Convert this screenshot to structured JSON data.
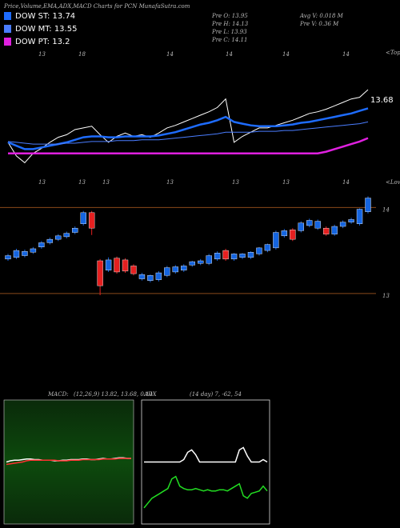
{
  "chart_data": [
    {
      "type": "line",
      "title": "Price,Volume,EMA,ADX,MACD Charts for PCN MunafaSutra.com",
      "stats": [
        "Pre O: 13.95",
        "Pre H: 14.13",
        "Pre L: 13.93",
        "Pre C: 14.11",
        "Avg V: 0.018 M",
        "Pre V: 0.36 M"
      ],
      "top_labels": [
        "13",
        "18",
        "14",
        "14",
        "14",
        "14"
      ],
      "top_marker": "<Tops",
      "bottom_labels": [
        "13",
        "13",
        "13",
        "13",
        "13",
        "13",
        "14"
      ],
      "bottom_marker": "<Lows",
      "annotation": "13.68",
      "ylim": [
        12.6,
        14.2
      ],
      "series": [
        {
          "color": "#ffffff",
          "values": [
            13.09,
            12.93,
            12.85,
            12.96,
            13.02,
            13.09,
            13.15,
            13.18,
            13.24,
            13.26,
            13.28,
            13.18,
            13.09,
            13.16,
            13.2,
            13.16,
            13.18,
            13.15,
            13.2,
            13.26,
            13.29,
            13.33,
            13.37,
            13.41,
            13.45,
            13.5,
            13.6,
            13.09,
            13.16,
            13.21,
            13.26,
            13.26,
            13.29,
            13.32,
            13.35,
            13.39,
            13.43,
            13.45,
            13.48,
            13.52,
            13.56,
            13.6,
            13.62,
            13.71
          ]
        },
        {
          "name": "DOW ST: 13.74",
          "color": "#1e6cff",
          "values": [
            13.09,
            13.05,
            13.01,
            13.01,
            13.03,
            13.05,
            13.07,
            13.09,
            13.12,
            13.15,
            13.16,
            13.16,
            13.15,
            13.15,
            13.16,
            13.16,
            13.16,
            13.16,
            13.17,
            13.19,
            13.21,
            13.24,
            13.27,
            13.3,
            13.32,
            13.35,
            13.39,
            13.33,
            13.31,
            13.29,
            13.28,
            13.28,
            13.28,
            13.29,
            13.3,
            13.32,
            13.33,
            13.35,
            13.37,
            13.39,
            13.41,
            13.43,
            13.46,
            13.49
          ]
        },
        {
          "name": "DOW MT: 13.55",
          "color": "#4a7dff",
          "values": [
            13.1,
            13.09,
            13.08,
            13.07,
            13.07,
            13.07,
            13.07,
            13.08,
            13.08,
            13.09,
            13.1,
            13.1,
            13.1,
            13.11,
            13.11,
            13.11,
            13.12,
            13.12,
            13.12,
            13.13,
            13.14,
            13.15,
            13.16,
            13.17,
            13.18,
            13.19,
            13.21,
            13.21,
            13.21,
            13.21,
            13.22,
            13.22,
            13.22,
            13.23,
            13.23,
            13.24,
            13.25,
            13.26,
            13.27,
            13.28,
            13.29,
            13.3,
            13.31,
            13.33
          ]
        },
        {
          "name": "DOW PT: 13.2",
          "color": "#e020e0",
          "values": [
            12.96,
            12.96,
            12.96,
            12.96,
            12.96,
            12.96,
            12.96,
            12.96,
            12.96,
            12.96,
            12.96,
            12.96,
            12.96,
            12.96,
            12.96,
            12.96,
            12.96,
            12.96,
            12.96,
            12.96,
            12.96,
            12.96,
            12.96,
            12.96,
            12.96,
            12.96,
            12.96,
            12.96,
            12.96,
            12.96,
            12.96,
            12.96,
            12.96,
            12.96,
            12.96,
            12.96,
            12.96,
            12.96,
            12.98,
            13.01,
            13.04,
            13.07,
            13.1,
            13.14
          ]
        }
      ]
    },
    {
      "type": "candlestick",
      "ylim": [
        11.9,
        14.32
      ],
      "yticks": [
        13,
        14
      ],
      "grid": true,
      "up_color": "#1565e0",
      "down_color": "#e52020",
      "open": [
        13.4,
        13.42,
        13.44,
        13.48,
        13.54,
        13.59,
        13.63,
        13.66,
        13.71,
        13.81,
        13.94,
        13.38,
        13.27,
        13.41,
        13.39,
        13.32,
        13.17,
        13.15,
        13.16,
        13.21,
        13.25,
        13.27,
        13.33,
        13.35,
        13.35,
        13.4,
        13.5,
        13.4,
        13.42,
        13.42,
        13.46,
        13.5,
        13.53,
        13.67,
        13.74,
        13.73,
        13.79,
        13.76,
        13.76,
        13.69,
        13.78,
        13.83,
        13.81,
        13.95
      ],
      "high": [
        13.46,
        13.52,
        13.51,
        13.54,
        13.61,
        13.65,
        13.69,
        13.72,
        13.78,
        13.96,
        13.96,
        13.4,
        13.42,
        13.43,
        13.41,
        13.34,
        13.24,
        13.22,
        13.26,
        13.32,
        13.33,
        13.34,
        13.38,
        13.4,
        13.46,
        13.49,
        13.52,
        13.47,
        13.47,
        13.49,
        13.54,
        13.58,
        13.73,
        13.75,
        13.76,
        13.84,
        13.87,
        13.86,
        13.78,
        13.8,
        13.85,
        13.88,
        13.99,
        14.13
      ],
      "low": [
        13.38,
        13.4,
        13.42,
        13.46,
        13.52,
        13.57,
        13.61,
        13.64,
        13.69,
        13.79,
        13.68,
        12.98,
        13.25,
        13.23,
        13.24,
        13.21,
        13.15,
        13.13,
        13.14,
        13.19,
        13.23,
        13.25,
        13.31,
        13.33,
        13.33,
        13.38,
        13.38,
        13.38,
        13.4,
        13.4,
        13.44,
        13.48,
        13.51,
        13.65,
        13.61,
        13.71,
        13.77,
        13.74,
        13.67,
        13.67,
        13.76,
        13.81,
        13.79,
        13.93
      ],
      "close": [
        13.44,
        13.5,
        13.49,
        13.52,
        13.59,
        13.63,
        13.67,
        13.7,
        13.76,
        13.94,
        13.76,
        13.09,
        13.39,
        13.25,
        13.26,
        13.23,
        13.22,
        13.21,
        13.24,
        13.3,
        13.31,
        13.32,
        13.37,
        13.38,
        13.44,
        13.47,
        13.4,
        13.46,
        13.46,
        13.48,
        13.53,
        13.57,
        13.71,
        13.73,
        13.63,
        13.82,
        13.85,
        13.84,
        13.69,
        13.78,
        13.83,
        13.86,
        13.98,
        14.11
      ]
    },
    {
      "type": "line",
      "title": "MACD:",
      "subtitle": "(12,26,9) 13.82, 13.68, 0.14",
      "ylim": [
        -1,
        1
      ],
      "series": [
        {
          "color": "#ffffff",
          "values": [
            0,
            0.02,
            0.03,
            0.03,
            0.04,
            0.05,
            0.05,
            0.04,
            0.04,
            0.03,
            0.03,
            0.03,
            0.02,
            0.02,
            0.03,
            0.03,
            0.04,
            0.04,
            0.04,
            0.05,
            0.05,
            0.04,
            0.04,
            0.05,
            0.06,
            0.05,
            0.05,
            0.06,
            0.07,
            0.07,
            0.06,
            0.06
          ]
        },
        {
          "color": "#ff3030",
          "values": [
            -0.04,
            -0.03,
            -0.02,
            -0.01,
            0,
            0.02,
            0.03,
            0.03,
            0.03,
            0.03,
            0.03,
            0.03,
            0.03,
            0.02,
            0.02,
            0.02,
            0.03,
            0.03,
            0.03,
            0.04,
            0.04,
            0.04,
            0.04,
            0.04,
            0.05,
            0.05,
            0.05,
            0.05,
            0.06,
            0.06,
            0.06,
            0.06
          ]
        }
      ]
    },
    {
      "type": "line",
      "title": "ADX",
      "subtitle": "(14 day) 7, -62, 54",
      "ylim": [
        0,
        100
      ],
      "series": [
        {
          "color": "#ffffff",
          "values": [
            50,
            50,
            50,
            50,
            50,
            50,
            50,
            50,
            50,
            50,
            52,
            58,
            60,
            56,
            50,
            50,
            50,
            50,
            50,
            50,
            50,
            50,
            50,
            50,
            60,
            62,
            55,
            50,
            50,
            50,
            52,
            50
          ]
        },
        {
          "color": "#22dd22",
          "values": [
            12,
            16,
            20,
            22,
            24,
            26,
            28,
            36,
            38,
            30,
            28,
            27,
            27,
            28,
            27,
            26,
            27,
            26,
            26,
            27,
            27,
            26,
            28,
            30,
            32,
            22,
            20,
            24,
            25,
            26,
            30,
            26
          ]
        }
      ]
    }
  ]
}
